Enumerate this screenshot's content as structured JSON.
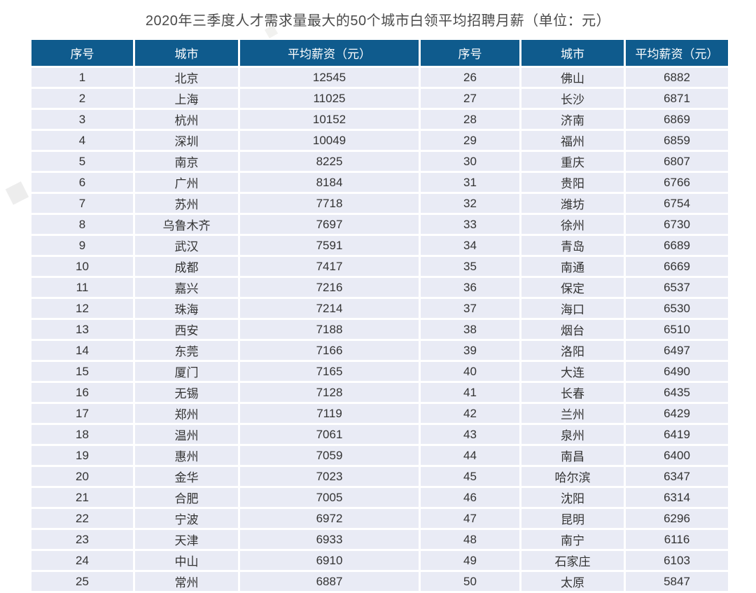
{
  "title": "2020年三季度人才需求量最大的50个城市白领平均招聘月薪（单位：元）",
  "colors": {
    "header_bg": "#0f5b8d",
    "row_bg": "#e9ebf5",
    "header_text": "#ffffff",
    "body_text": "#333333",
    "title_text": "#4a4a4a",
    "page_bg": "#ffffff"
  },
  "watermark_glyph": "◆",
  "table": {
    "columns": [
      "序号",
      "城市",
      "平均薪资（元）",
      "序号",
      "城市",
      "平均薪资（元）"
    ]
  },
  "chart_data": {
    "type": "table",
    "title": "2020年三季度人才需求量最大的50个城市白领平均招聘月薪（单位：元）",
    "columns": [
      "序号",
      "城市",
      "平均薪资（元）"
    ],
    "rows": [
      [
        1,
        "北京",
        12545
      ],
      [
        2,
        "上海",
        11025
      ],
      [
        3,
        "杭州",
        10152
      ],
      [
        4,
        "深圳",
        10049
      ],
      [
        5,
        "南京",
        8225
      ],
      [
        6,
        "广州",
        8184
      ],
      [
        7,
        "苏州",
        7718
      ],
      [
        8,
        "乌鲁木齐",
        7697
      ],
      [
        9,
        "武汉",
        7591
      ],
      [
        10,
        "成都",
        7417
      ],
      [
        11,
        "嘉兴",
        7216
      ],
      [
        12,
        "珠海",
        7214
      ],
      [
        13,
        "西安",
        7188
      ],
      [
        14,
        "东莞",
        7166
      ],
      [
        15,
        "厦门",
        7165
      ],
      [
        16,
        "无锡",
        7128
      ],
      [
        17,
        "郑州",
        7119
      ],
      [
        18,
        "温州",
        7061
      ],
      [
        19,
        "惠州",
        7059
      ],
      [
        20,
        "金华",
        7023
      ],
      [
        21,
        "合肥",
        7005
      ],
      [
        22,
        "宁波",
        6972
      ],
      [
        23,
        "天津",
        6933
      ],
      [
        24,
        "中山",
        6910
      ],
      [
        25,
        "常州",
        6887
      ],
      [
        26,
        "佛山",
        6882
      ],
      [
        27,
        "长沙",
        6871
      ],
      [
        28,
        "济南",
        6869
      ],
      [
        29,
        "福州",
        6859
      ],
      [
        30,
        "重庆",
        6807
      ],
      [
        31,
        "贵阳",
        6766
      ],
      [
        32,
        "潍坊",
        6754
      ],
      [
        33,
        "徐州",
        6730
      ],
      [
        34,
        "青岛",
        6689
      ],
      [
        35,
        "南通",
        6669
      ],
      [
        36,
        "保定",
        6537
      ],
      [
        37,
        "海口",
        6530
      ],
      [
        38,
        "烟台",
        6510
      ],
      [
        39,
        "洛阳",
        6497
      ],
      [
        40,
        "大连",
        6490
      ],
      [
        41,
        "长春",
        6435
      ],
      [
        42,
        "兰州",
        6429
      ],
      [
        43,
        "泉州",
        6419
      ],
      [
        44,
        "南昌",
        6400
      ],
      [
        45,
        "哈尔滨",
        6347
      ],
      [
        46,
        "沈阳",
        6314
      ],
      [
        47,
        "昆明",
        6296
      ],
      [
        48,
        "南宁",
        6116
      ],
      [
        49,
        "石家庄",
        6103
      ],
      [
        50,
        "太原",
        5847
      ]
    ]
  }
}
